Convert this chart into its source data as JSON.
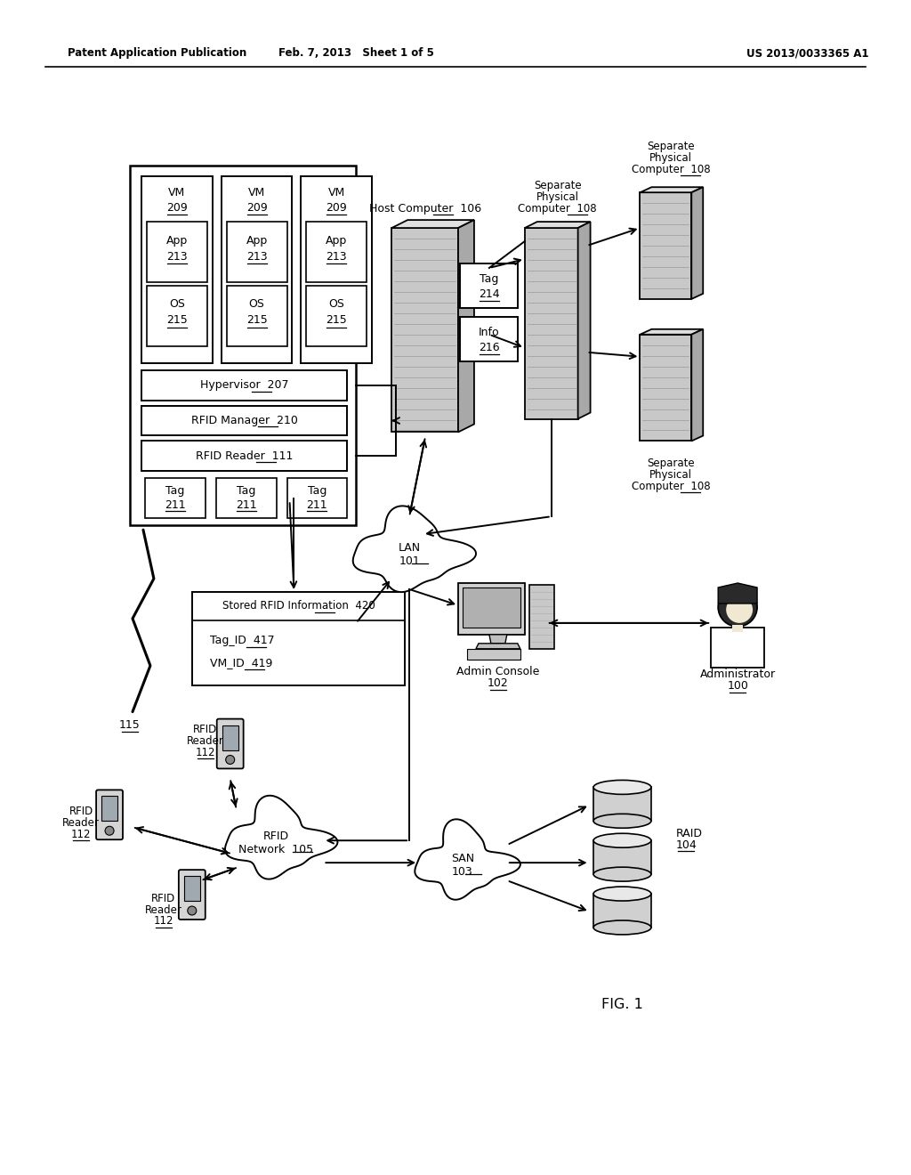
{
  "title_left": "Patent Application Publication",
  "title_center": "Feb. 7, 2013   Sheet 1 of 5",
  "title_right": "US 2013/0033365 A1",
  "fig_label": "FIG. 1",
  "bg_color": "#ffffff"
}
